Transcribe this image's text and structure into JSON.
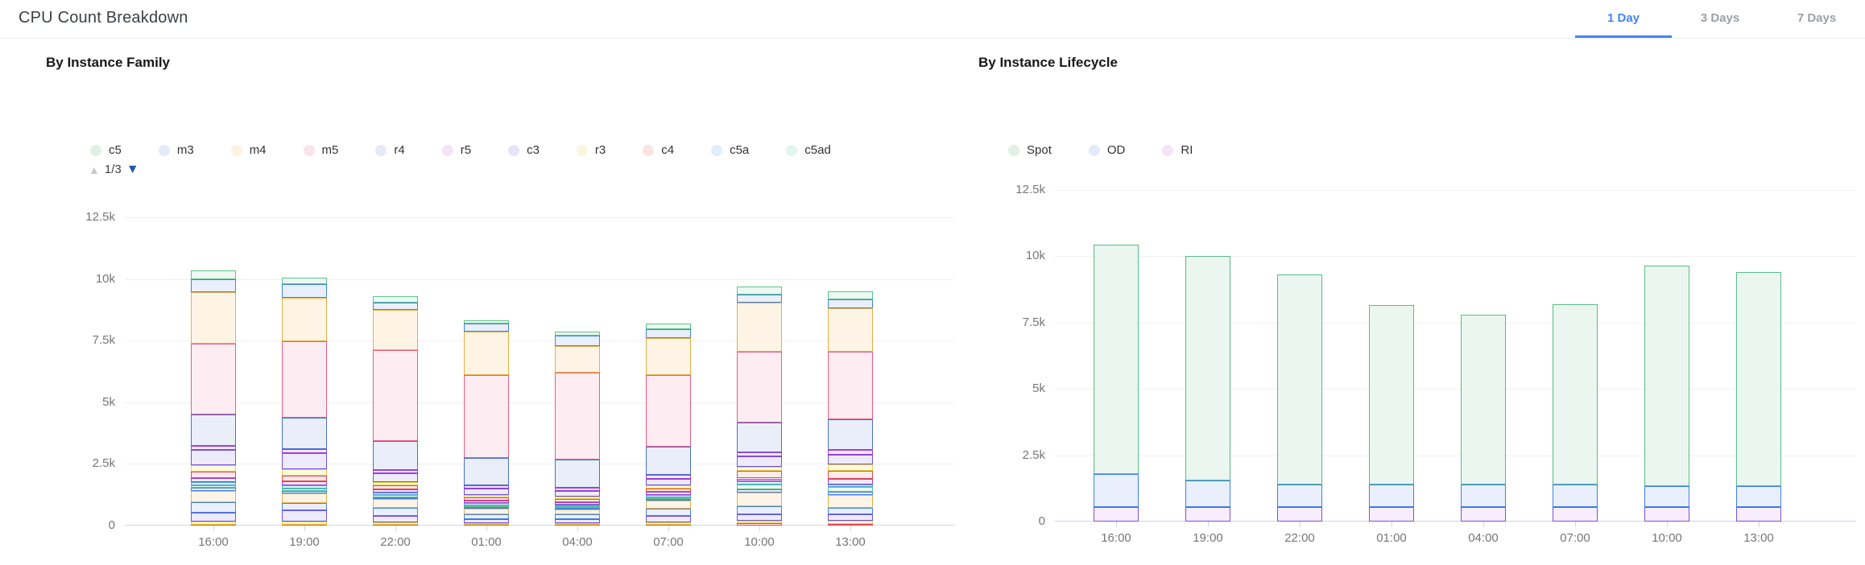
{
  "header": {
    "title": "CPU Count Breakdown",
    "tabs": [
      {
        "label": "1 Day",
        "active": true
      },
      {
        "label": "3 Days",
        "active": false
      },
      {
        "label": "7 Days",
        "active": false
      }
    ],
    "accent_color": "#4285f4",
    "inactive_tab_color": "#9aa0a6"
  },
  "palette": {
    "green": {
      "stroke": "#5bc48c",
      "fill": "#edf8f2"
    },
    "blue": {
      "stroke": "#4285e0",
      "fill": "#e9effc"
    },
    "orange": {
      "stroke": "#e9ae49",
      "fill": "#fdf4e5"
    },
    "pink": {
      "stroke": "#e85c83",
      "fill": "#fdedf2"
    },
    "periwinkle": {
      "stroke": "#4a6fd0",
      "fill": "#e9eef9"
    },
    "purple": {
      "stroke": "#a13fd6",
      "fill": "#f5e8fb"
    },
    "violet": {
      "stroke": "#6f52e0",
      "fill": "#edeafc"
    },
    "yellow": {
      "stroke": "#e2cf3e",
      "fill": "#fcf9dd"
    },
    "red": {
      "stroke": "#e8484f",
      "fill": "#fdeaea"
    },
    "lightblue": {
      "stroke": "#42a6e0",
      "fill": "#e7f4fc"
    },
    "teal": {
      "stroke": "#3fc2ad",
      "fill": "#e7f8f4"
    },
    "spot": {
      "stroke": "#57bd89",
      "fill": "#eaf6ef"
    },
    "od": {
      "stroke": "#4080e8",
      "fill": "#e9effc"
    },
    "ri": {
      "stroke": "#7a52dd",
      "fill": "#f7edfc"
    }
  },
  "chart_data": [
    {
      "type": "bar",
      "stacked": true,
      "title": "By Instance Family",
      "categories": [
        "16:00",
        "19:00",
        "22:00",
        "01:00",
        "04:00",
        "07:00",
        "10:00",
        "13:00"
      ],
      "ylim": [
        0,
        12500
      ],
      "y_ticks": [
        [
          0,
          "0"
        ],
        [
          2500,
          "2.5k"
        ],
        [
          5000,
          "5k"
        ],
        [
          7500,
          "7.5k"
        ],
        [
          10000,
          "10k"
        ],
        [
          12500,
          "12.5k"
        ]
      ],
      "grid": true,
      "legend_position": "top",
      "legend": [
        {
          "label": "c5",
          "marker": "#dff0e7"
        },
        {
          "label": "m3",
          "marker": "#e3eafa"
        },
        {
          "label": "m4",
          "marker": "#fbf2e0"
        },
        {
          "label": "m5",
          "marker": "#f9e4eb"
        },
        {
          "label": "r4",
          "marker": "#e5eaf6"
        },
        {
          "label": "r5",
          "marker": "#f3e3f5"
        },
        {
          "label": "c3",
          "marker": "#e7e4f8"
        },
        {
          "label": "r3",
          "marker": "#f9f6dd"
        },
        {
          "label": "c4",
          "marker": "#f9e3e3"
        },
        {
          "label": "c5a",
          "marker": "#dfeffa"
        },
        {
          "label": "c5ad",
          "marker": "#e2f5ee"
        }
      ],
      "legend_pager": {
        "up": "▲",
        "label": "1/3",
        "down": "▼"
      },
      "series_palette": {
        "c5": "green",
        "m3": "blue",
        "m4": "orange",
        "m5": "pink",
        "r4": "periwinkle",
        "r5": "purple",
        "c3": "violet",
        "r3": "yellow",
        "c4": "red",
        "c5a": "lightblue",
        "c5ad": "teal"
      },
      "bars": [
        {
          "category": "16:00",
          "total": 10350,
          "segments": [
            [
              "red",
              45
            ],
            [
              "yellow",
              110
            ],
            [
              "violet",
              365
            ],
            [
              "blue",
              430
            ],
            [
              "orange",
              470
            ],
            [
              "blue",
              100
            ],
            [
              "green",
              100
            ],
            [
              "lightblue",
              130
            ],
            [
              "purple",
              170
            ],
            [
              "red",
              280
            ],
            [
              "yellow",
              240
            ],
            [
              "violet",
              640
            ],
            [
              "purple",
              140
            ],
            [
              "periwinkle",
              1300
            ],
            [
              "pink",
              2860
            ],
            [
              "orange",
              2070
            ],
            [
              "blue",
              550
            ],
            [
              "green",
              350
            ]
          ]
        },
        {
          "category": "19:00",
          "total": 10050,
          "segments": [
            [
              "red",
              45
            ],
            [
              "yellow",
              110
            ],
            [
              "violet",
              475
            ],
            [
              "blue",
              300
            ],
            [
              "orange",
              380
            ],
            [
              "blue",
              90
            ],
            [
              "green",
              100
            ],
            [
              "lightblue",
              130
            ],
            [
              "purple",
              160
            ],
            [
              "red",
              250
            ],
            [
              "yellow",
              245
            ],
            [
              "violet",
              660
            ],
            [
              "purple",
              150
            ],
            [
              "periwinkle",
              1280
            ],
            [
              "pink",
              3090
            ],
            [
              "orange",
              1770
            ],
            [
              "blue",
              550
            ],
            [
              "green",
              265
            ]
          ]
        },
        {
          "category": "22:00",
          "total": 9300,
          "segments": [
            [
              "red",
              40
            ],
            [
              "yellow",
              90
            ],
            [
              "violet",
              260
            ],
            [
              "blue",
              330
            ],
            [
              "orange",
              360
            ],
            [
              "blue",
              70
            ],
            [
              "green",
              80
            ],
            [
              "lightblue",
              100
            ],
            [
              "purple",
              130
            ],
            [
              "red",
              160
            ],
            [
              "yellow",
              130
            ],
            [
              "violet",
              360
            ],
            [
              "purple",
              140
            ],
            [
              "periwinkle",
              1190
            ],
            [
              "pink",
              3660
            ],
            [
              "orange",
              1660
            ],
            [
              "blue",
              280
            ],
            [
              "green",
              260
            ]
          ]
        },
        {
          "category": "01:00",
          "total": 8330,
          "segments": [
            [
              "red",
              30
            ],
            [
              "yellow",
              80
            ],
            [
              "violet",
              160
            ],
            [
              "blue",
              200
            ],
            [
              "orange",
              220
            ],
            [
              "blue",
              60
            ],
            [
              "green",
              70
            ],
            [
              "lightblue",
              80
            ],
            [
              "purple",
              110
            ],
            [
              "red",
              120
            ],
            [
              "yellow",
              110
            ],
            [
              "violet",
              250
            ],
            [
              "purple",
              150
            ],
            [
              "periwinkle",
              1090
            ],
            [
              "pink",
              3380
            ],
            [
              "orange",
              1750
            ],
            [
              "blue",
              330
            ],
            [
              "green",
              140
            ]
          ]
        },
        {
          "category": "04:00",
          "total": 7850,
          "segments": [
            [
              "red",
              30
            ],
            [
              "yellow",
              75
            ],
            [
              "violet",
              150
            ],
            [
              "blue",
              190
            ],
            [
              "orange",
              210
            ],
            [
              "blue",
              55
            ],
            [
              "green",
              65
            ],
            [
              "lightblue",
              75
            ],
            [
              "purple",
              100
            ],
            [
              "red",
              115
            ],
            [
              "yellow",
              105
            ],
            [
              "violet",
              230
            ],
            [
              "purple",
              120
            ],
            [
              "periwinkle",
              1160
            ],
            [
              "pink",
              3510
            ],
            [
              "orange",
              1090
            ],
            [
              "blue",
              430
            ],
            [
              "green",
              140
            ]
          ]
        },
        {
          "category": "07:00",
          "total": 8200,
          "segments": [
            [
              "red",
              35
            ],
            [
              "yellow",
              85
            ],
            [
              "violet",
              260
            ],
            [
              "blue",
              300
            ],
            [
              "orange",
              330
            ],
            [
              "blue",
              65
            ],
            [
              "green",
              75
            ],
            [
              "lightblue",
              90
            ],
            [
              "purple",
              120
            ],
            [
              "red",
              140
            ],
            [
              "yellow",
              120
            ],
            [
              "violet",
              280
            ],
            [
              "purple",
              150
            ],
            [
              "periwinkle",
              1150
            ],
            [
              "pink",
              2900
            ],
            [
              "orange",
              1500
            ],
            [
              "blue",
              380
            ],
            [
              "green",
              220
            ]
          ]
        },
        {
          "category": "10:00",
          "total": 9700,
          "segments": [
            [
              "red",
              100
            ],
            [
              "yellow",
              100
            ],
            [
              "violet",
              260
            ],
            [
              "blue",
              330
            ],
            [
              "orange",
              560
            ],
            [
              "blue",
              130
            ],
            [
              "green",
              200
            ],
            [
              "lightblue",
              100
            ],
            [
              "purple",
              130
            ],
            [
              "red",
              300
            ],
            [
              "yellow",
              170
            ],
            [
              "violet",
              430
            ],
            [
              "purple",
              170
            ],
            [
              "periwinkle",
              1190
            ],
            [
              "pink",
              2880
            ],
            [
              "orange",
              1990
            ],
            [
              "blue",
              330
            ],
            [
              "green",
              330
            ]
          ]
        },
        {
          "category": "13:00",
          "total": 9490,
          "segments": [
            [
              "red",
              80
            ],
            [
              "yellow",
              120
            ],
            [
              "violet",
              260
            ],
            [
              "blue",
              260
            ],
            [
              "orange",
              530
            ],
            [
              "blue",
              130
            ],
            [
              "green",
              200
            ],
            [
              "lightblue",
              100
            ],
            [
              "purple",
              200
            ],
            [
              "red",
              330
            ],
            [
              "yellow",
              260
            ],
            [
              "violet",
              400
            ],
            [
              "purple",
              200
            ],
            [
              "periwinkle",
              1230
            ],
            [
              "pink",
              2750
            ],
            [
              "orange",
              1750
            ],
            [
              "blue",
              360
            ],
            [
              "green",
              330
            ]
          ]
        }
      ]
    },
    {
      "type": "bar",
      "stacked": true,
      "title": "By Instance Lifecycle",
      "categories": [
        "16:00",
        "19:00",
        "22:00",
        "01:00",
        "04:00",
        "07:00",
        "10:00",
        "13:00"
      ],
      "ylim": [
        0,
        12500
      ],
      "y_ticks": [
        [
          0,
          "0"
        ],
        [
          2500,
          "2.5k"
        ],
        [
          5000,
          "5k"
        ],
        [
          7500,
          "7.5k"
        ],
        [
          10000,
          "10k"
        ],
        [
          12500,
          "12.5k"
        ]
      ],
      "grid": true,
      "legend_position": "top",
      "legend": [
        {
          "label": "Spot",
          "marker": "#e0efe7"
        },
        {
          "label": "OD",
          "marker": "#e3eafa"
        },
        {
          "label": "RI",
          "marker": "#f4e4f8"
        }
      ],
      "series": [
        {
          "name": "RI",
          "color": "ri",
          "values": [
            550,
            550,
            550,
            550,
            550,
            550,
            550,
            550
          ]
        },
        {
          "name": "OD",
          "color": "od",
          "values": [
            1250,
            1000,
            850,
            850,
            850,
            850,
            800,
            800
          ]
        },
        {
          "name": "Spot",
          "color": "spot",
          "values": [
            8650,
            8450,
            7900,
            6750,
            6400,
            6800,
            8300,
            8050
          ]
        }
      ],
      "totals": [
        10450,
        10000,
        9300,
        8150,
        7800,
        8200,
        9650,
        9400
      ]
    }
  ]
}
